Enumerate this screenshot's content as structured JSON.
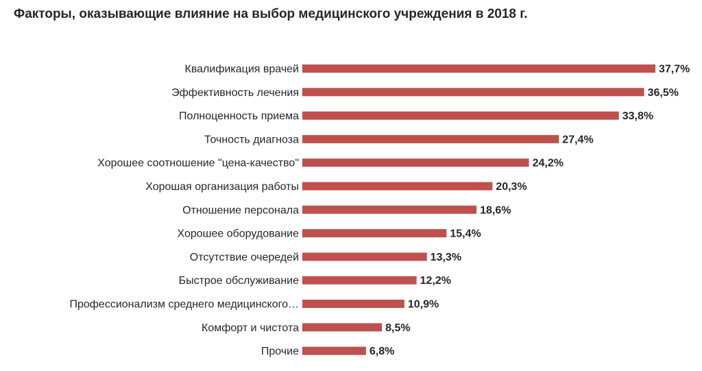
{
  "chart_data": {
    "type": "bar",
    "orientation": "horizontal",
    "title": "Факторы, оказывающие влияние на выбор медицинского учреждения в 2018 г.",
    "xlabel": "",
    "ylabel": "",
    "xlim": [
      0,
      37.7
    ],
    "grid": false,
    "legend": "none",
    "bar_color": "#c0504d",
    "categories": [
      "Квалификация врачей",
      "Эффективность лечения",
      "Полноценность приема",
      "Точность диагноза",
      "Хорошее соотношение \"цена-качество\"",
      "Хорошая организация работы",
      "Отношение персонала",
      "Хорошее оборудование",
      "Отсутствие очередей",
      "Быстрое обслуживание",
      "Профессионализм среднего медицинского…",
      "Комфорт и чистота",
      "Прочие"
    ],
    "values": [
      37.7,
      36.5,
      33.8,
      27.4,
      24.2,
      20.3,
      18.6,
      15.4,
      13.3,
      12.2,
      10.9,
      8.5,
      6.8
    ],
    "data_labels": [
      "37,7%",
      "36,5%",
      "33,8%",
      "27,4%",
      "24,2%",
      "20,3%",
      "18,6%",
      "15,4%",
      "13,3%",
      "12,2%",
      "10,9%",
      "8,5%",
      "6,8%"
    ]
  }
}
